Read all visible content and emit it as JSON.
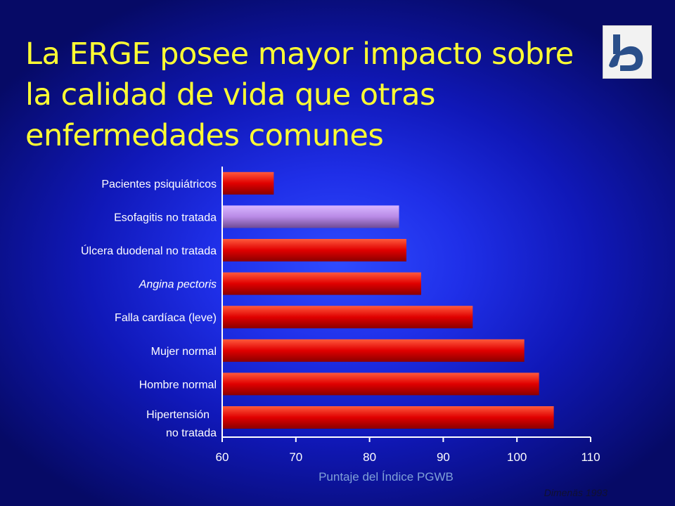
{
  "slide": {
    "title_lines": [
      "La ERGE posee mayor impacto sobre",
      "la calidad de vida que otras",
      "enfermedades comunes"
    ],
    "source": "Dimenäs 1993",
    "logo_icon": "hospital-logo-icon"
  },
  "colors": {
    "background": "#1f2fe8",
    "title": "#ffff33",
    "bar": "#e00000",
    "highlight_bar": "#b98ae6",
    "axis": "#ffffff",
    "text": "#ffffff"
  },
  "chart_data": {
    "type": "bar",
    "orientation": "horizontal",
    "categories": [
      "Pacientes psiquiátricos",
      "Esofagitis no tratada",
      "Úlcera duodenal no tratada",
      "Angina pectoris",
      "Falla cardíaca (leve)",
      "Mujer normal",
      "Hombre normal",
      "Hipertensión\nno tratada"
    ],
    "italic_categories": [
      "Angina pectoris"
    ],
    "values": [
      67,
      84,
      85,
      87,
      94,
      101,
      103,
      105
    ],
    "highlight_index": 1,
    "xlabel": "Puntaje del Índice PGWB",
    "ylabel": "",
    "xlim": [
      60,
      110
    ],
    "xticks": [
      60,
      70,
      80,
      90,
      100,
      110
    ],
    "grid": false
  }
}
